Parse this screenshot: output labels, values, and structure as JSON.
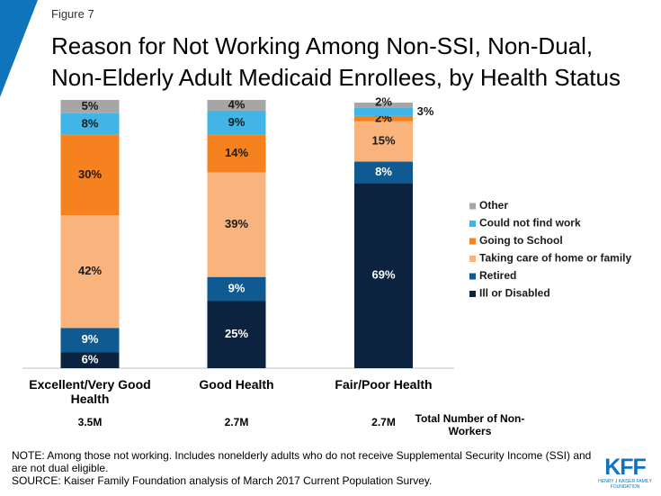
{
  "figure_label": "Figure 7",
  "chart_data": {
    "type": "stacked_bar",
    "title": [
      "Reason for Not Working Among Non-SSI, Non-Dual,",
      "Non-Elderly Adult Medicaid Enrollees, by Health Status"
    ],
    "categories": [
      "Excellent/Very Good Health",
      "Good Health",
      "Fair/Poor Health"
    ],
    "ylim": [
      0,
      100
    ],
    "series": [
      {
        "name": "Ill or Disabled",
        "color": "#0c2340",
        "label_color": "#ffffff",
        "values": [
          6,
          25,
          69
        ],
        "value_labels": [
          "6%",
          "25%",
          "69%"
        ]
      },
      {
        "name": "Retired",
        "color": "#0f5a90",
        "label_color": "#ffffff",
        "values": [
          9,
          9,
          8
        ],
        "value_labels": [
          "9%",
          "9%",
          "8%"
        ]
      },
      {
        "name": "Taking care of home or family",
        "color": "#f8b47c",
        "label_color": "#1a1a1a",
        "values": [
          42,
          39,
          15
        ],
        "value_labels": [
          "42%",
          "39%",
          "15%"
        ]
      },
      {
        "name": "Going to School",
        "color": "#f5821f",
        "label_color": "#1a1a1a",
        "values": [
          30,
          14,
          2
        ],
        "value_labels": [
          "30%",
          "14%",
          "2%"
        ]
      },
      {
        "name": "Could not find work",
        "color": "#41b6e6",
        "label_color": "#1a1a1a",
        "values": [
          8,
          9,
          3
        ],
        "value_labels": [
          "8%",
          "9%",
          "3%"
        ]
      },
      {
        "name": "Other",
        "color": "#a6a6a6",
        "label_color": "#1a1a1a",
        "values": [
          5,
          4,
          2
        ],
        "value_labels": [
          "5%",
          "4%",
          "2%"
        ]
      }
    ],
    "legend": "right",
    "totals": {
      "label": "Total Number of Non-Workers",
      "values": [
        "3.5M",
        "2.7M",
        "2.7M"
      ]
    }
  },
  "notes": [
    "NOTE: Among those not working. Includes nonelderly adults who do not receive Supplemental Security Income (SSI) and are not dual eligible.",
    "SOURCE: Kaiser Family Foundation analysis of March 2017 Current Population Survey."
  ],
  "logo": {
    "mark": "KFF",
    "text": "HENRY J KAISER FAMILY FOUNDATION"
  }
}
